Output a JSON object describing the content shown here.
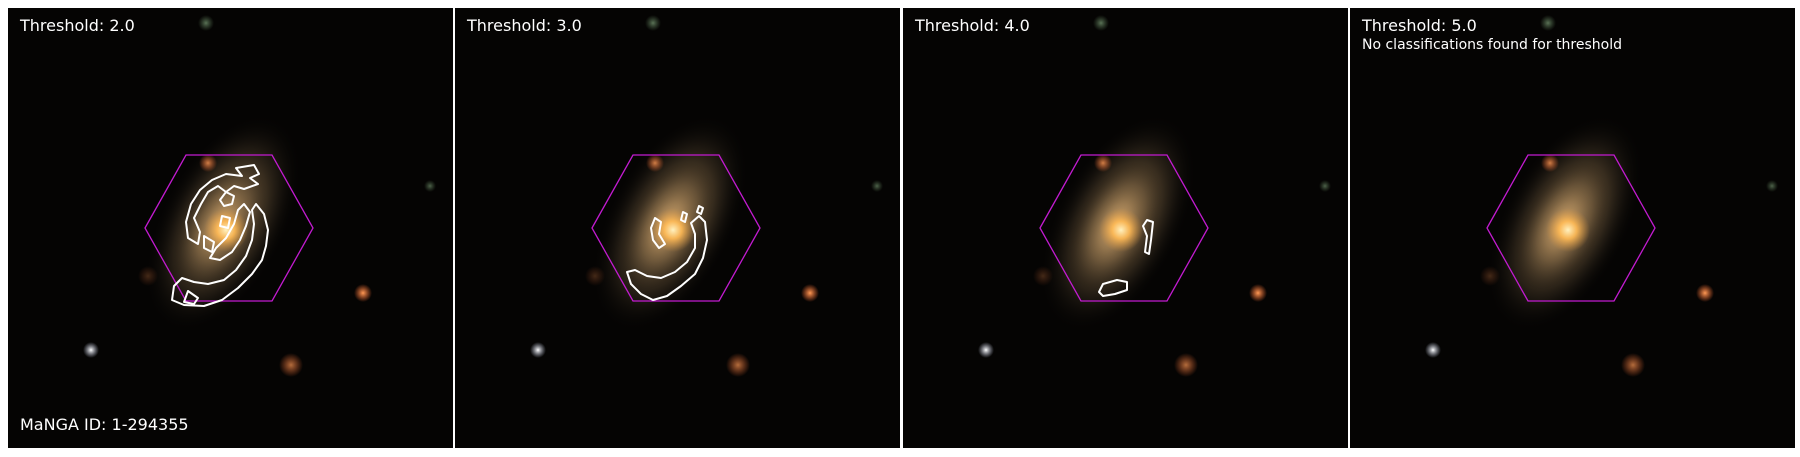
{
  "panels": [
    {
      "threshold_label": "Threshold: 2.0",
      "note": "",
      "footer": "MaNGA ID: 1-294355",
      "contour_level": 2
    },
    {
      "threshold_label": "Threshold: 3.0",
      "note": "",
      "footer": "",
      "contour_level": 3
    },
    {
      "threshold_label": "Threshold: 4.0",
      "note": "",
      "footer": "",
      "contour_level": 4
    },
    {
      "threshold_label": "Threshold: 5.0",
      "note": "No classifications found for threshold",
      "footer": "",
      "contour_level": 5
    }
  ],
  "colors": {
    "hexagon": "#c21bd0",
    "contour": "#ffffff",
    "background": "#050403",
    "galaxy_core": "#ffc36a",
    "galaxy_disk": "#c9a06a"
  },
  "icons": [
    "galaxy-image",
    "ifu-hexagon-outline",
    "classification-contour"
  ]
}
